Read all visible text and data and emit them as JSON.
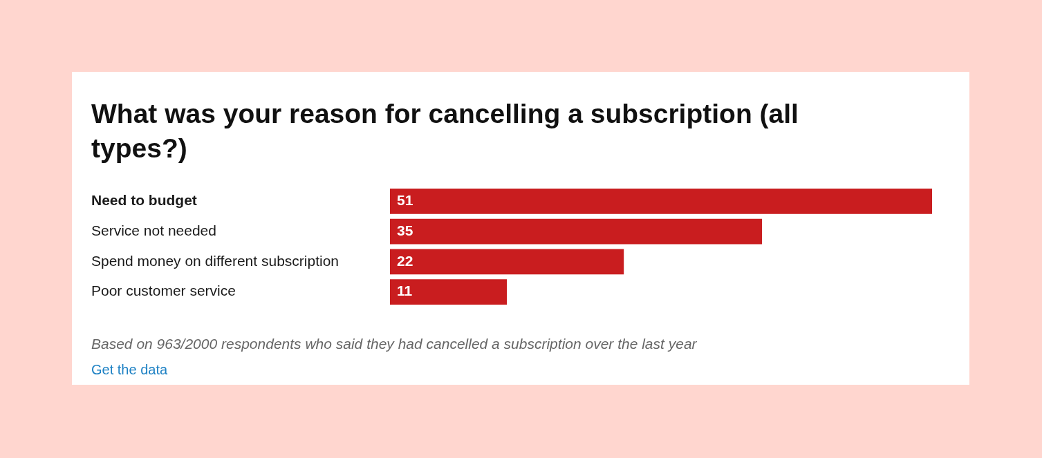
{
  "chart_data": {
    "type": "bar",
    "orientation": "horizontal",
    "title": "What was your reason for cancelling a subscription (all types?)",
    "categories": [
      "Need to budget",
      "Service not needed",
      "Spend money on different subscription",
      "Poor customer service"
    ],
    "values": [
      51,
      35,
      22,
      11
    ],
    "color": "#c91d1f",
    "data_labels": true,
    "annotations": [
      "Based on 963/2000 respondents who said they had cancelled a subscription over the last year",
      "Get the data"
    ]
  }
}
